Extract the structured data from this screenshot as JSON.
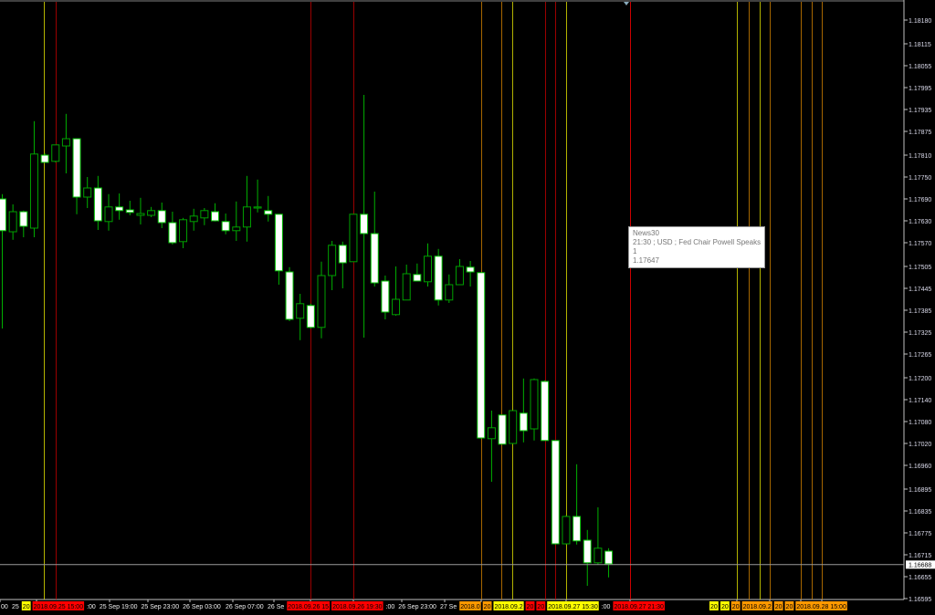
{
  "chart_data": {
    "type": "candlestick",
    "symbol_scale": "price",
    "ylim": [
      1.16575,
      1.18235
    ],
    "grid": false,
    "colors": {
      "background": "#000000",
      "bull_outline": "#00c000",
      "bear_fill": "#ffffff",
      "bear_outline": "#00c000",
      "axis": "#c0c0c0",
      "text": "#ffffff"
    },
    "y_ticks": [
      "1.18180",
      "1.18115",
      "1.18055",
      "1.17995",
      "1.17935",
      "1.17875",
      "1.17810",
      "1.17750",
      "1.17690",
      "1.17630",
      "1.17570",
      "1.17505",
      "1.17445",
      "1.17385",
      "1.17325",
      "1.17265",
      "1.17200",
      "1.17140",
      "1.17080",
      "1.17020",
      "1.16960",
      "1.16895",
      "1.16835",
      "1.16775",
      "1.16715",
      "1.16655",
      "1.16595"
    ],
    "current_price": "1.16688",
    "candles": [
      [
        1.1769,
        1.17703,
        1.17335,
        1.17603
      ],
      [
        1.176,
        1.17675,
        1.17578,
        1.17655
      ],
      [
        1.17655,
        1.17658,
        1.17585,
        1.17615
      ],
      [
        1.1761,
        1.17903,
        1.17585,
        1.17813
      ],
      [
        1.1781,
        1.17815,
        1.1779,
        1.1779
      ],
      [
        1.17793,
        1.17838,
        1.1779,
        1.17838
      ],
      [
        1.17835,
        1.17923,
        1.1776,
        1.17855
      ],
      [
        1.17855,
        1.17855,
        1.17648,
        1.17695
      ],
      [
        1.17695,
        1.1775,
        1.17665,
        1.1772
      ],
      [
        1.1772,
        1.17753,
        1.17605,
        1.1763
      ],
      [
        1.17628,
        1.17703,
        1.17603,
        1.17668
      ],
      [
        1.17668,
        1.17705,
        1.17633,
        1.17658
      ],
      [
        1.1766,
        1.17685,
        1.17645,
        1.17653
      ],
      [
        1.17645,
        1.17693,
        1.1762,
        1.1765
      ],
      [
        1.17645,
        1.17668,
        1.1764,
        1.17658
      ],
      [
        1.17658,
        1.1768,
        1.1761,
        1.17625
      ],
      [
        1.17625,
        1.17655,
        1.17565,
        1.1757
      ],
      [
        1.17573,
        1.17638,
        1.17555,
        1.17633
      ],
      [
        1.17628,
        1.17663,
        1.17603,
        1.17643
      ],
      [
        1.17638,
        1.17665,
        1.17618,
        1.17658
      ],
      [
        1.17655,
        1.17678,
        1.17628,
        1.1763
      ],
      [
        1.17628,
        1.1765,
        1.17593,
        1.17603
      ],
      [
        1.17603,
        1.17683,
        1.17575,
        1.17613
      ],
      [
        1.17613,
        1.17753,
        1.17573,
        1.17668
      ],
      [
        1.17665,
        1.17743,
        1.17653,
        1.17668
      ],
      [
        1.17658,
        1.17698,
        1.17628,
        1.17648
      ],
      [
        1.17648,
        1.17648,
        1.17455,
        1.17493
      ],
      [
        1.1749,
        1.17503,
        1.17355,
        1.1736
      ],
      [
        1.17363,
        1.1743,
        1.17303,
        1.17403
      ],
      [
        1.17398,
        1.17403,
        1.17335,
        1.17338
      ],
      [
        1.17338,
        1.17518,
        1.17308,
        1.1748
      ],
      [
        1.1748,
        1.17575,
        1.1744,
        1.17563
      ],
      [
        1.17563,
        1.17573,
        1.17445,
        1.17515
      ],
      [
        1.17518,
        1.17648,
        1.17518,
        1.17648
      ],
      [
        1.17648,
        1.17975,
        1.1731,
        1.17595
      ],
      [
        1.17595,
        1.1771,
        1.1745,
        1.1746
      ],
      [
        1.17465,
        1.1748,
        1.1736,
        1.1738
      ],
      [
        1.17373,
        1.17505,
        1.1737,
        1.17415
      ],
      [
        1.17413,
        1.1751,
        1.17413,
        1.17485
      ],
      [
        1.17483,
        1.17513,
        1.17465,
        1.17465
      ],
      [
        1.17463,
        1.17568,
        1.1745,
        1.17533
      ],
      [
        1.17533,
        1.17553,
        1.17398,
        1.17413
      ],
      [
        1.17413,
        1.17483,
        1.17405,
        1.17455
      ],
      [
        1.17455,
        1.17525,
        1.17455,
        1.17505
      ],
      [
        1.17503,
        1.1752,
        1.1745,
        1.1749
      ],
      [
        1.17488,
        1.17488,
        1.17033,
        1.17035
      ],
      [
        1.17033,
        1.1711,
        1.16915,
        1.17063
      ],
      [
        1.17098,
        1.17098,
        1.17018,
        1.17018
      ],
      [
        1.1702,
        1.1711,
        1.17018,
        1.1711
      ],
      [
        1.17103,
        1.17198,
        1.17023,
        1.17055
      ],
      [
        1.1706,
        1.17198,
        1.17028,
        1.17195
      ],
      [
        1.1719,
        1.17193,
        1.17028,
        1.17028
      ],
      [
        1.17028,
        1.17028,
        1.16743,
        1.16745
      ],
      [
        1.16745,
        1.16823,
        1.16743,
        1.1682
      ],
      [
        1.1682,
        1.16963,
        1.16743,
        1.16753
      ],
      [
        1.16755,
        1.16783,
        1.1663,
        1.16693
      ],
      [
        1.16693,
        1.16845,
        1.16688,
        1.16733
      ],
      [
        1.16725,
        1.16733,
        1.16653,
        1.1669
      ]
    ],
    "event_line_colors": [
      "#e0e000",
      "#c00000",
      "#c00000",
      "#c00000",
      "#d08000",
      "#d08000",
      "#e0e000",
      "#c00000",
      "#c00000",
      "#e0e000",
      "#ff0000",
      "#e0e000",
      "#d08000",
      "#e0e000",
      "#d08000",
      "#d08000",
      "#d08000",
      "#d08000"
    ],
    "x_labels": [
      {
        "text": "00",
        "bg": ""
      },
      {
        "text": "25",
        "bg": ""
      },
      {
        "text": "20",
        "bg": "#ffff00"
      },
      {
        "text": "2018.09.25 15:00",
        "bg": "#ff0000"
      },
      {
        "text": ":00",
        "bg": ""
      },
      {
        "text": "25 Sep 19:00",
        "bg": ""
      },
      {
        "text": "25 Sep 23:00",
        "bg": ""
      },
      {
        "text": "26 Sep 03:00",
        "bg": ""
      },
      {
        "text": "26 Sep 07:00",
        "bg": ""
      },
      {
        "text": "26 Se",
        "bg": ""
      },
      {
        "text": "2018.09.26 15",
        "bg": "#ff0000"
      },
      {
        "text": "2018.09.26 19:30",
        "bg": "#ff0000"
      },
      {
        "text": ":00",
        "bg": ""
      },
      {
        "text": "26 Sep 23:00",
        "bg": ""
      },
      {
        "text": "27 Se",
        "bg": ""
      },
      {
        "text": "2018.0",
        "bg": "#ff9900"
      },
      {
        "text": "20",
        "bg": "#ff9900"
      },
      {
        "text": "2018.09.2",
        "bg": "#ffff00"
      },
      {
        "text": "20",
        "bg": "#ff0000"
      },
      {
        "text": "20",
        "bg": "#ff0000"
      },
      {
        "text": "2018.09.27 15:30",
        "bg": "#ffff00"
      },
      {
        "text": ":00",
        "bg": ""
      },
      {
        "text": "2018.09.27 21:30",
        "bg": "#ff0000"
      },
      {
        "text": "20",
        "bg": "#ffff00"
      },
      {
        "text": "20",
        "bg": "#ffff00"
      },
      {
        "text": "20",
        "bg": "#ff9900"
      },
      {
        "text": "2018.09.2",
        "bg": "#ff9900"
      },
      {
        "text": "20",
        "bg": "#ff9900"
      },
      {
        "text": "20",
        "bg": "#ff9900"
      },
      {
        "text": "2018.09.28 15:00",
        "bg": "#ff9900"
      }
    ]
  },
  "tooltip": {
    "name": "News30",
    "event": "21:30 ; USD ; Fed Chair Powell Speaks",
    "importance": "1",
    "price": "1.17647"
  }
}
